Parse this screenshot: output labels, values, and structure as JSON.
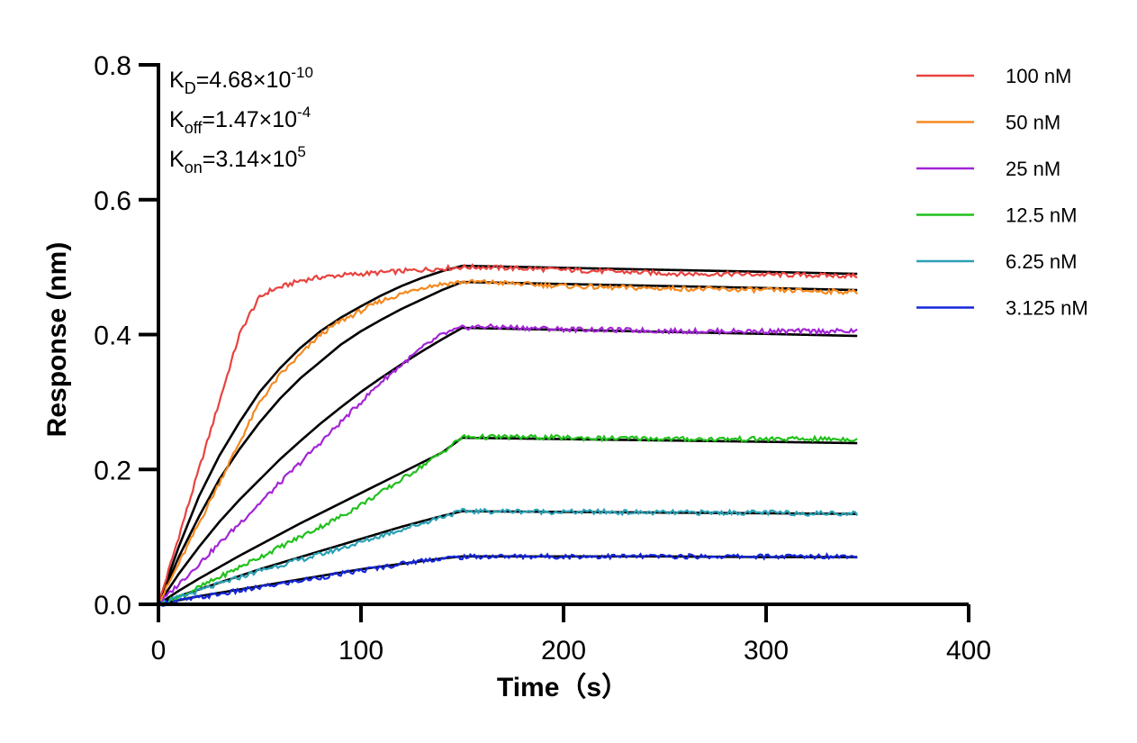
{
  "chart_data": {
    "type": "line",
    "title": "",
    "xlabel": "Time（s）",
    "ylabel": "Response (nm)",
    "xlim": [
      0,
      400
    ],
    "ylim": [
      0,
      0.8
    ],
    "xticks": [
      0,
      100,
      200,
      300,
      400
    ],
    "xtick_labels": [
      "0",
      "100",
      "200",
      "300",
      "400"
    ],
    "yticks": [
      0,
      0.2,
      0.4,
      0.6,
      0.8
    ],
    "ytick_labels": [
      "0.0",
      "0.2",
      "0.4",
      "0.6",
      "0.8"
    ],
    "grid": false,
    "legend_position": "top-right",
    "annotations": [
      {
        "base": "K",
        "sub": "D",
        "text": "=4.68×10",
        "sup": "-10"
      },
      {
        "base": "K",
        "sub": "off",
        "text": "=1.47×10",
        "sup": "-4"
      },
      {
        "base": "K",
        "sub": "on",
        "text": "=3.14×10",
        "sup": "5"
      }
    ],
    "series": [
      {
        "name": "100 nM",
        "color": "#e8433f",
        "x": [
          0,
          5,
          10,
          15,
          20,
          25,
          30,
          35,
          40,
          45,
          50,
          55,
          60,
          70,
          80,
          90,
          100,
          110,
          120,
          130,
          140,
          150,
          160,
          180,
          200,
          220,
          240,
          260,
          280,
          300,
          320,
          345
        ],
        "y": [
          0,
          0.05,
          0.1,
          0.15,
          0.2,
          0.25,
          0.3,
          0.35,
          0.4,
          0.43,
          0.455,
          0.465,
          0.47,
          0.48,
          0.485,
          0.488,
          0.49,
          0.492,
          0.494,
          0.496,
          0.498,
          0.5,
          0.5,
          0.498,
          0.496,
          0.494,
          0.492,
          0.49,
          0.49,
          0.489,
          0.488,
          0.487
        ]
      },
      {
        "name": "50 nM",
        "color": "#f5891f",
        "x": [
          0,
          10,
          20,
          30,
          40,
          50,
          60,
          70,
          80,
          90,
          100,
          110,
          120,
          130,
          140,
          150,
          160,
          180,
          200,
          220,
          240,
          260,
          280,
          300,
          320,
          345
        ],
        "y": [
          0,
          0.06,
          0.12,
          0.18,
          0.24,
          0.3,
          0.34,
          0.37,
          0.4,
          0.42,
          0.435,
          0.45,
          0.46,
          0.47,
          0.475,
          0.478,
          0.478,
          0.475,
          0.472,
          0.47,
          0.469,
          0.468,
          0.467,
          0.466,
          0.465,
          0.463
        ]
      },
      {
        "name": "25 nM",
        "color": "#a325d6",
        "x": [
          0,
          10,
          20,
          30,
          40,
          50,
          60,
          70,
          80,
          90,
          100,
          110,
          120,
          130,
          140,
          150,
          160,
          180,
          200,
          220,
          240,
          260,
          280,
          300,
          320,
          345
        ],
        "y": [
          0,
          0.03,
          0.06,
          0.09,
          0.12,
          0.15,
          0.18,
          0.21,
          0.24,
          0.27,
          0.3,
          0.33,
          0.355,
          0.38,
          0.4,
          0.41,
          0.412,
          0.41,
          0.408,
          0.407,
          0.406,
          0.405,
          0.405,
          0.405,
          0.405,
          0.405
        ]
      },
      {
        "name": "12.5 nM",
        "color": "#21c01c",
        "x": [
          0,
          10,
          20,
          30,
          40,
          50,
          60,
          70,
          80,
          90,
          100,
          110,
          120,
          130,
          140,
          150,
          160,
          180,
          200,
          220,
          240,
          260,
          280,
          300,
          320,
          345
        ],
        "y": [
          0,
          0.01,
          0.025,
          0.04,
          0.055,
          0.07,
          0.085,
          0.1,
          0.115,
          0.13,
          0.148,
          0.166,
          0.185,
          0.205,
          0.225,
          0.248,
          0.248,
          0.248,
          0.247,
          0.246,
          0.246,
          0.245,
          0.245,
          0.245,
          0.245,
          0.245
        ]
      },
      {
        "name": "6.25 nM",
        "color": "#2aa0b5",
        "x": [
          0,
          10,
          20,
          30,
          40,
          50,
          60,
          70,
          80,
          90,
          100,
          110,
          120,
          130,
          140,
          150,
          160,
          180,
          200,
          220,
          240,
          260,
          280,
          300,
          320,
          345
        ],
        "y": [
          0,
          0.01,
          0.02,
          0.03,
          0.04,
          0.05,
          0.058,
          0.066,
          0.074,
          0.083,
          0.092,
          0.102,
          0.111,
          0.12,
          0.13,
          0.138,
          0.138,
          0.138,
          0.137,
          0.137,
          0.136,
          0.136,
          0.136,
          0.136,
          0.135,
          0.135
        ]
      },
      {
        "name": "3.125 nM",
        "color": "#1426d8",
        "x": [
          0,
          10,
          20,
          30,
          40,
          50,
          60,
          70,
          80,
          90,
          100,
          110,
          120,
          130,
          140,
          150,
          160,
          180,
          200,
          220,
          240,
          260,
          280,
          300,
          320,
          345
        ],
        "y": [
          0,
          0.005,
          0.01,
          0.015,
          0.02,
          0.025,
          0.03,
          0.035,
          0.04,
          0.045,
          0.05,
          0.055,
          0.06,
          0.065,
          0.068,
          0.07,
          0.071,
          0.071,
          0.071,
          0.071,
          0.071,
          0.071,
          0.071,
          0.071,
          0.071,
          0.072
        ]
      }
    ],
    "fits": [
      {
        "color": "#000000",
        "x": [
          0,
          10,
          20,
          30,
          40,
          50,
          60,
          70,
          80,
          90,
          100,
          110,
          120,
          130,
          140,
          150,
          200,
          250,
          300,
          345
        ],
        "y": [
          0,
          0.085,
          0.16,
          0.22,
          0.27,
          0.315,
          0.35,
          0.38,
          0.405,
          0.425,
          0.442,
          0.458,
          0.472,
          0.484,
          0.494,
          0.502,
          0.499,
          0.496,
          0.493,
          0.49
        ]
      },
      {
        "color": "#000000",
        "x": [
          0,
          10,
          20,
          30,
          40,
          50,
          60,
          70,
          80,
          90,
          100,
          110,
          120,
          130,
          140,
          150,
          200,
          250,
          300,
          345
        ],
        "y": [
          0,
          0.07,
          0.13,
          0.185,
          0.23,
          0.27,
          0.305,
          0.335,
          0.36,
          0.385,
          0.405,
          0.422,
          0.438,
          0.452,
          0.466,
          0.478,
          0.475,
          0.472,
          0.469,
          0.466
        ]
      },
      {
        "color": "#000000",
        "x": [
          0,
          10,
          20,
          30,
          40,
          50,
          60,
          70,
          80,
          90,
          100,
          110,
          120,
          130,
          140,
          150,
          200,
          250,
          300,
          345
        ],
        "y": [
          0,
          0.045,
          0.085,
          0.122,
          0.155,
          0.185,
          0.215,
          0.242,
          0.268,
          0.292,
          0.315,
          0.336,
          0.356,
          0.375,
          0.393,
          0.41,
          0.407,
          0.404,
          0.401,
          0.398
        ]
      },
      {
        "color": "#000000",
        "x": [
          0,
          10,
          20,
          30,
          40,
          50,
          60,
          70,
          80,
          90,
          100,
          110,
          120,
          130,
          140,
          150,
          200,
          250,
          300,
          345
        ],
        "y": [
          0,
          0.02,
          0.038,
          0.055,
          0.072,
          0.088,
          0.104,
          0.12,
          0.135,
          0.15,
          0.165,
          0.18,
          0.195,
          0.21,
          0.225,
          0.247,
          0.245,
          0.243,
          0.241,
          0.239
        ]
      },
      {
        "color": "#000000",
        "x": [
          0,
          10,
          20,
          30,
          40,
          50,
          60,
          70,
          80,
          90,
          100,
          110,
          120,
          130,
          140,
          150,
          200,
          250,
          300,
          345
        ],
        "y": [
          0,
          0.012,
          0.022,
          0.032,
          0.042,
          0.052,
          0.061,
          0.07,
          0.079,
          0.088,
          0.097,
          0.106,
          0.115,
          0.123,
          0.131,
          0.138,
          0.137,
          0.136,
          0.135,
          0.134
        ]
      },
      {
        "color": "#000000",
        "x": [
          0,
          10,
          20,
          30,
          40,
          50,
          60,
          70,
          80,
          90,
          100,
          110,
          120,
          130,
          140,
          150,
          200,
          250,
          300,
          345
        ],
        "y": [
          0,
          0.006,
          0.012,
          0.017,
          0.022,
          0.027,
          0.032,
          0.037,
          0.042,
          0.047,
          0.052,
          0.056,
          0.06,
          0.064,
          0.068,
          0.071,
          0.071,
          0.071,
          0.07,
          0.07
        ]
      }
    ]
  }
}
